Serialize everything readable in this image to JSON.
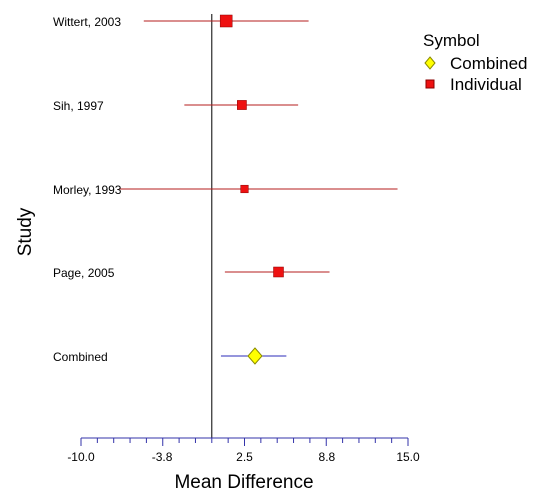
{
  "colors": {
    "individual": "#ee1111",
    "individual_line": "#b41e1e",
    "combined_fill": "#ffff00",
    "combined_stroke": "#8a8a00",
    "combined_line": "#2b2bb8",
    "axis": "#3333aa",
    "zero_line": "#000000"
  },
  "chart_data": {
    "type": "scatter",
    "subtype": "forest-plot",
    "xlabel": "Mean Difference",
    "ylabel": "Study",
    "xlim": [
      -10.0,
      15.0
    ],
    "xticks": [
      -10.0,
      -3.8,
      2.5,
      8.8,
      15.0
    ],
    "xtick_labels": [
      "-10.0",
      "-3.8",
      "2.5",
      "8.8",
      "15.0"
    ],
    "reference_line_x": 0,
    "grid": false,
    "legend": {
      "title": "Symbol",
      "position": "top-right",
      "entries": [
        {
          "label": "Combined",
          "marker": "diamond"
        },
        {
          "label": "Individual",
          "marker": "square"
        }
      ]
    },
    "rows": [
      {
        "label": "Wittert, 2003",
        "group": "Individual",
        "estimate": 1.1,
        "ci_low": -5.2,
        "ci_high": 7.4,
        "weight": 1.0
      },
      {
        "label": "Sih, 1997",
        "group": "Individual",
        "estimate": 2.3,
        "ci_low": -2.1,
        "ci_high": 6.6,
        "weight": 0.65
      },
      {
        "label": "Morley, 1993",
        "group": "Individual",
        "estimate": 2.5,
        "ci_low": -7.1,
        "ci_high": 14.2,
        "weight": 0.45
      },
      {
        "label": "Page, 2005",
        "group": "Individual",
        "estimate": 5.1,
        "ci_low": 1.0,
        "ci_high": 9.0,
        "weight": 0.75
      },
      {
        "label": "Combined",
        "group": "Combined",
        "estimate": 3.3,
        "ci_low": 0.7,
        "ci_high": 5.7,
        "weight": 1.0
      }
    ]
  }
}
